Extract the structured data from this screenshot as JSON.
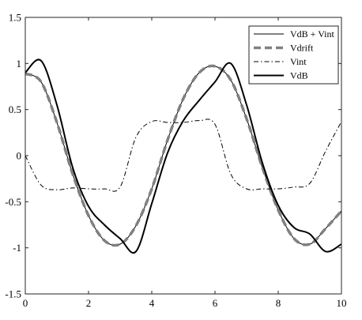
{
  "chart_data": {
    "type": "line",
    "title": "",
    "xlabel": "",
    "ylabel": "",
    "xlim": [
      0,
      10
    ],
    "ylim": [
      -1.5,
      1.5
    ],
    "xticks": [
      0,
      2,
      4,
      6,
      8,
      10
    ],
    "xtick_labels": [
      "0",
      "2",
      "4",
      "6",
      "8",
      "10"
    ],
    "yticks": [
      -1.5,
      -1,
      -0.5,
      0,
      0.5,
      1,
      1.5
    ],
    "ytick_labels": [
      "-1.5",
      "-1",
      "-0.5",
      "0",
      "0.5",
      "1",
      "1.5"
    ],
    "grid": false,
    "legend_position": "top-right",
    "x": [
      0,
      0.5,
      1,
      1.5,
      2,
      2.5,
      3,
      3.5,
      4,
      4.5,
      5,
      5.5,
      6,
      6.5,
      7,
      7.5,
      8,
      8.5,
      9,
      9.5,
      10
    ],
    "series": [
      {
        "name": "VdB + Vint",
        "color": "#000000",
        "style": "solid-thin",
        "values": [
          0.89,
          0.8,
          0.36,
          -0.2,
          -0.65,
          -0.92,
          -0.96,
          -0.76,
          -0.36,
          0.17,
          0.62,
          0.9,
          0.97,
          0.82,
          0.4,
          -0.13,
          -0.59,
          -0.9,
          -0.96,
          -0.79,
          -0.6
        ]
      },
      {
        "name": "Vdrift",
        "color": "#808080",
        "style": "dashed-thick",
        "values": [
          0.89,
          0.8,
          0.36,
          -0.2,
          -0.65,
          -0.92,
          -0.96,
          -0.76,
          -0.36,
          0.17,
          0.62,
          0.9,
          0.97,
          0.82,
          0.4,
          -0.13,
          -0.59,
          -0.9,
          -0.96,
          -0.79,
          -0.6
        ]
      },
      {
        "name": "Vint",
        "color": "#000000",
        "style": "dashdot-thin",
        "values": [
          0,
          -0.32,
          -0.37,
          -0.35,
          -0.36,
          -0.36,
          -0.34,
          0.2,
          0.37,
          0.36,
          0.36,
          0.38,
          0.34,
          -0.2,
          -0.36,
          -0.36,
          -0.36,
          -0.34,
          -0.3,
          0.05,
          0.37
        ]
      },
      {
        "name": "VdB",
        "color": "#000000",
        "style": "solid-thick",
        "values": [
          0.9,
          1.03,
          0.55,
          -0.13,
          -0.55,
          -0.75,
          -0.9,
          -1.04,
          -0.52,
          0.03,
          0.38,
          0.6,
          0.8,
          1.0,
          0.55,
          -0.08,
          -0.54,
          -0.78,
          -0.85,
          -1.04,
          -0.96
        ]
      }
    ]
  }
}
